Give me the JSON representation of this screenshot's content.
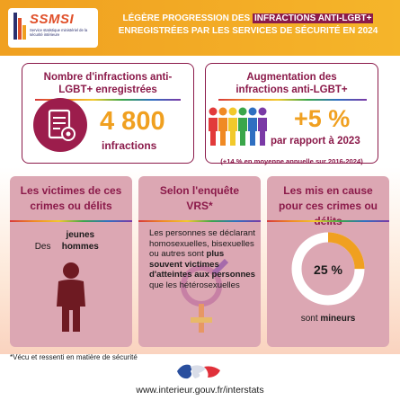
{
  "logo": {
    "title": "SSMSI",
    "subtitle": "Service statistique ministériel de la sécurité intérieure"
  },
  "header": {
    "title_part1": "Légère progression des",
    "title_highlight": "infractions anti-LGBT+",
    "title_part2": "enregistrées par les services de sécurité en 2024"
  },
  "card_count": {
    "title": "Nombre d'infractions anti-LGBT+ enregistrées",
    "value": "4 800",
    "unit": "infractions",
    "icon": "document-seal-icon"
  },
  "card_increase": {
    "title": "Augmentation des infractions anti-LGBT+",
    "value": "+5 %",
    "subtitle": "par rapport à 2023",
    "note": "(+14 % en moyenne annuelle sur 2016-2024)",
    "icon": "rainbow-people-icon",
    "colors": [
      "#e23a3a",
      "#f08a24",
      "#f2c92b",
      "#3aa64a",
      "#2f6fc1",
      "#7a3aa6"
    ]
  },
  "panel_victims": {
    "title": "Les victimes de ces crimes ou délits",
    "text_prefix": "Des",
    "text_bold": "jeunes hommes",
    "icon": "man-silhouette-icon"
  },
  "panel_survey": {
    "title": "Selon l'enquête VRS*",
    "text_normal": "Les personnes se déclarant homosexuelles, bisexuelles ou autres sont",
    "text_bold": "plus souvent victimes d'atteintes aux personnes",
    "text_end": "que les hétérosexuelles",
    "icon": "gender-symbols-icon"
  },
  "panel_suspects": {
    "title": "Les mis en cause pour ces crimes ou délits",
    "share": 25,
    "share_label": "25 %",
    "text_prefix": "sont",
    "text_bold": "mineurs"
  },
  "footnote": "*Vécu et ressenti en matière de sécurité",
  "footer": {
    "url": "www.interieur.gouv.fr/interstats",
    "icon": "marianne-flag-icon"
  },
  "colors": {
    "accent": "#f0a020",
    "brand": "#8b1a4a",
    "panel": "#dca7b3"
  }
}
